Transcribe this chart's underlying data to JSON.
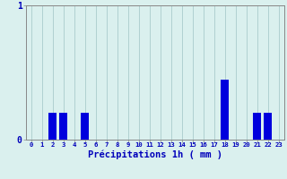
{
  "hours": [
    0,
    1,
    2,
    3,
    4,
    5,
    6,
    7,
    8,
    9,
    10,
    11,
    12,
    13,
    14,
    15,
    16,
    17,
    18,
    19,
    20,
    21,
    22,
    23
  ],
  "values": [
    0,
    0,
    0.2,
    0.2,
    0,
    0.2,
    0,
    0,
    0,
    0,
    0,
    0,
    0,
    0,
    0,
    0,
    0,
    0,
    0.45,
    0,
    0,
    0.2,
    0.2,
    0
  ],
  "bar_color": "#0000dd",
  "background_color": "#daf0ee",
  "grid_color": "#aacccc",
  "axis_label_color": "#0000bb",
  "tick_color": "#0000bb",
  "xlabel": "Précipitations 1h ( mm )",
  "ylim": [
    0,
    1.0
  ],
  "yticks": [
    0,
    1
  ],
  "bar_width": 0.75
}
